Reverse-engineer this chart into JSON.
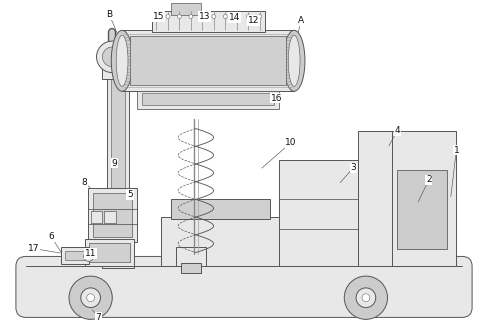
{
  "fig_width": 4.88,
  "fig_height": 3.3,
  "dpi": 100,
  "bg_color": "#ffffff",
  "line_color": "#555555",
  "lw": 0.7
}
